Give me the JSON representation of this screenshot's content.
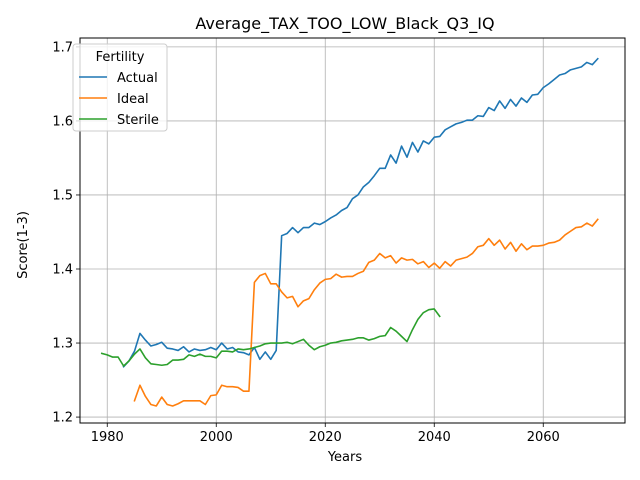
{
  "chart_data": {
    "type": "line",
    "title": "Average_TAX_TOO_LOW_Black_Q3_IQ",
    "xlabel": "Years",
    "ylabel": "Score(1-3)",
    "xlim": [
      1975,
      2075
    ],
    "ylim": [
      1.192,
      1.712
    ],
    "xticks": [
      "1980",
      "2000",
      "2020",
      "2040",
      "2060"
    ],
    "yticks": [
      "1.2",
      "1.3",
      "1.4",
      "1.5",
      "1.6",
      "1.7"
    ],
    "grid": true,
    "legend": {
      "title": "Fertility",
      "placement": "top-left"
    },
    "series": [
      {
        "name": "Actual",
        "color": "#1f77b4",
        "points": [
          [
            1983,
            1.268
          ],
          [
            1984,
            1.276
          ],
          [
            1985,
            1.289
          ],
          [
            1986,
            1.313
          ],
          [
            1987,
            1.304
          ],
          [
            1988,
            1.296
          ],
          [
            1989,
            1.298
          ],
          [
            1990,
            1.301
          ],
          [
            1991,
            1.293
          ],
          [
            1992,
            1.292
          ],
          [
            1993,
            1.29
          ],
          [
            1994,
            1.295
          ],
          [
            1995,
            1.288
          ],
          [
            1996,
            1.292
          ],
          [
            1997,
            1.29
          ],
          [
            1998,
            1.291
          ],
          [
            1999,
            1.294
          ],
          [
            2000,
            1.291
          ],
          [
            2001,
            1.3
          ],
          [
            2002,
            1.292
          ],
          [
            2003,
            1.294
          ],
          [
            2004,
            1.288
          ],
          [
            2005,
            1.287
          ],
          [
            2006,
            1.284
          ],
          [
            2007,
            1.294
          ],
          [
            2008,
            1.278
          ],
          [
            2009,
            1.288
          ],
          [
            2010,
            1.278
          ],
          [
            2011,
            1.29
          ],
          [
            2012,
            1.445
          ],
          [
            2013,
            1.448
          ],
          [
            2014,
            1.456
          ],
          [
            2015,
            1.449
          ],
          [
            2016,
            1.456
          ],
          [
            2017,
            1.456
          ],
          [
            2018,
            1.462
          ],
          [
            2019,
            1.46
          ],
          [
            2020,
            1.464
          ],
          [
            2021,
            1.469
          ],
          [
            2022,
            1.473
          ],
          [
            2023,
            1.479
          ],
          [
            2024,
            1.483
          ],
          [
            2025,
            1.495
          ],
          [
            2026,
            1.5
          ],
          [
            2027,
            1.511
          ],
          [
            2028,
            1.517
          ],
          [
            2029,
            1.526
          ],
          [
            2030,
            1.536
          ],
          [
            2031,
            1.536
          ],
          [
            2032,
            1.554
          ],
          [
            2033,
            1.543
          ],
          [
            2034,
            1.566
          ],
          [
            2035,
            1.551
          ],
          [
            2036,
            1.571
          ],
          [
            2037,
            1.558
          ],
          [
            2038,
            1.573
          ],
          [
            2039,
            1.569
          ],
          [
            2040,
            1.578
          ],
          [
            2041,
            1.579
          ],
          [
            2042,
            1.588
          ],
          [
            2043,
            1.592
          ],
          [
            2044,
            1.596
          ],
          [
            2045,
            1.598
          ],
          [
            2046,
            1.601
          ],
          [
            2047,
            1.601
          ],
          [
            2048,
            1.607
          ],
          [
            2049,
            1.606
          ],
          [
            2050,
            1.618
          ],
          [
            2051,
            1.614
          ],
          [
            2052,
            1.627
          ],
          [
            2053,
            1.617
          ],
          [
            2054,
            1.629
          ],
          [
            2055,
            1.62
          ],
          [
            2056,
            1.631
          ],
          [
            2057,
            1.625
          ],
          [
            2058,
            1.635
          ],
          [
            2059,
            1.636
          ],
          [
            2060,
            1.645
          ],
          [
            2061,
            1.65
          ],
          [
            2062,
            1.656
          ],
          [
            2063,
            1.662
          ],
          [
            2064,
            1.664
          ],
          [
            2065,
            1.669
          ],
          [
            2066,
            1.671
          ],
          [
            2067,
            1.673
          ],
          [
            2068,
            1.679
          ],
          [
            2069,
            1.676
          ],
          [
            2070,
            1.684
          ]
        ]
      },
      {
        "name": "Ideal",
        "color": "#ff7f0e",
        "points": [
          [
            1985,
            1.222
          ],
          [
            1986,
            1.243
          ],
          [
            1987,
            1.228
          ],
          [
            1988,
            1.217
          ],
          [
            1989,
            1.215
          ],
          [
            1990,
            1.227
          ],
          [
            1991,
            1.217
          ],
          [
            1992,
            1.215
          ],
          [
            1993,
            1.218
          ],
          [
            1994,
            1.222
          ],
          [
            1995,
            1.222
          ],
          [
            1996,
            1.222
          ],
          [
            1997,
            1.222
          ],
          [
            1998,
            1.217
          ],
          [
            1999,
            1.229
          ],
          [
            2000,
            1.23
          ],
          [
            2001,
            1.243
          ],
          [
            2002,
            1.241
          ],
          [
            2003,
            1.241
          ],
          [
            2004,
            1.24
          ],
          [
            2005,
            1.235
          ],
          [
            2006,
            1.235
          ],
          [
            2007,
            1.382
          ],
          [
            2008,
            1.391
          ],
          [
            2009,
            1.394
          ],
          [
            2010,
            1.38
          ],
          [
            2011,
            1.38
          ],
          [
            2012,
            1.369
          ],
          [
            2013,
            1.361
          ],
          [
            2014,
            1.363
          ],
          [
            2015,
            1.349
          ],
          [
            2016,
            1.357
          ],
          [
            2017,
            1.36
          ],
          [
            2018,
            1.372
          ],
          [
            2019,
            1.381
          ],
          [
            2020,
            1.386
          ],
          [
            2021,
            1.387
          ],
          [
            2022,
            1.393
          ],
          [
            2023,
            1.389
          ],
          [
            2024,
            1.39
          ],
          [
            2025,
            1.39
          ],
          [
            2026,
            1.394
          ],
          [
            2027,
            1.397
          ],
          [
            2028,
            1.409
          ],
          [
            2029,
            1.412
          ],
          [
            2030,
            1.421
          ],
          [
            2031,
            1.415
          ],
          [
            2032,
            1.418
          ],
          [
            2033,
            1.408
          ],
          [
            2034,
            1.415
          ],
          [
            2035,
            1.412
          ],
          [
            2036,
            1.413
          ],
          [
            2037,
            1.407
          ],
          [
            2038,
            1.41
          ],
          [
            2039,
            1.402
          ],
          [
            2040,
            1.408
          ],
          [
            2041,
            1.401
          ],
          [
            2042,
            1.41
          ],
          [
            2043,
            1.404
          ],
          [
            2044,
            1.412
          ],
          [
            2045,
            1.414
          ],
          [
            2046,
            1.416
          ],
          [
            2047,
            1.421
          ],
          [
            2048,
            1.43
          ],
          [
            2049,
            1.432
          ],
          [
            2050,
            1.441
          ],
          [
            2051,
            1.432
          ],
          [
            2052,
            1.439
          ],
          [
            2053,
            1.427
          ],
          [
            2054,
            1.436
          ],
          [
            2055,
            1.424
          ],
          [
            2056,
            1.434
          ],
          [
            2057,
            1.426
          ],
          [
            2058,
            1.431
          ],
          [
            2059,
            1.431
          ],
          [
            2060,
            1.432
          ],
          [
            2061,
            1.435
          ],
          [
            2062,
            1.436
          ],
          [
            2063,
            1.439
          ],
          [
            2064,
            1.446
          ],
          [
            2065,
            1.451
          ],
          [
            2066,
            1.456
          ],
          [
            2067,
            1.457
          ],
          [
            2068,
            1.462
          ],
          [
            2069,
            1.458
          ],
          [
            2070,
            1.467
          ]
        ]
      },
      {
        "name": "Sterile",
        "color": "#2ca02c",
        "points": [
          [
            1979,
            1.286
          ],
          [
            1980,
            1.284
          ],
          [
            1981,
            1.281
          ],
          [
            1982,
            1.281
          ],
          [
            1983,
            1.269
          ],
          [
            1984,
            1.276
          ],
          [
            1985,
            1.285
          ],
          [
            1986,
            1.292
          ],
          [
            1987,
            1.28
          ],
          [
            1988,
            1.272
          ],
          [
            1989,
            1.271
          ],
          [
            1990,
            1.27
          ],
          [
            1991,
            1.271
          ],
          [
            1992,
            1.277
          ],
          [
            1993,
            1.277
          ],
          [
            1994,
            1.278
          ],
          [
            1995,
            1.284
          ],
          [
            1996,
            1.282
          ],
          [
            1997,
            1.285
          ],
          [
            1998,
            1.282
          ],
          [
            1999,
            1.282
          ],
          [
            2000,
            1.28
          ],
          [
            2001,
            1.289
          ],
          [
            2002,
            1.289
          ],
          [
            2003,
            1.288
          ],
          [
            2004,
            1.292
          ],
          [
            2005,
            1.291
          ],
          [
            2006,
            1.292
          ],
          [
            2007,
            1.294
          ],
          [
            2008,
            1.296
          ],
          [
            2009,
            1.299
          ],
          [
            2010,
            1.3
          ],
          [
            2011,
            1.3
          ],
          [
            2012,
            1.3
          ],
          [
            2013,
            1.301
          ],
          [
            2014,
            1.299
          ],
          [
            2015,
            1.302
          ],
          [
            2016,
            1.305
          ],
          [
            2017,
            1.297
          ],
          [
            2018,
            1.291
          ],
          [
            2019,
            1.295
          ],
          [
            2020,
            1.297
          ],
          [
            2021,
            1.3
          ],
          [
            2022,
            1.301
          ],
          [
            2023,
            1.303
          ],
          [
            2024,
            1.304
          ],
          [
            2025,
            1.305
          ],
          [
            2026,
            1.307
          ],
          [
            2027,
            1.307
          ],
          [
            2028,
            1.304
          ],
          [
            2029,
            1.306
          ],
          [
            2030,
            1.309
          ],
          [
            2031,
            1.31
          ],
          [
            2032,
            1.321
          ],
          [
            2033,
            1.316
          ],
          [
            2034,
            1.309
          ],
          [
            2035,
            1.302
          ],
          [
            2036,
            1.318
          ],
          [
            2037,
            1.332
          ],
          [
            2038,
            1.341
          ],
          [
            2039,
            1.345
          ],
          [
            2040,
            1.346
          ],
          [
            2041,
            1.336
          ]
        ]
      }
    ]
  }
}
